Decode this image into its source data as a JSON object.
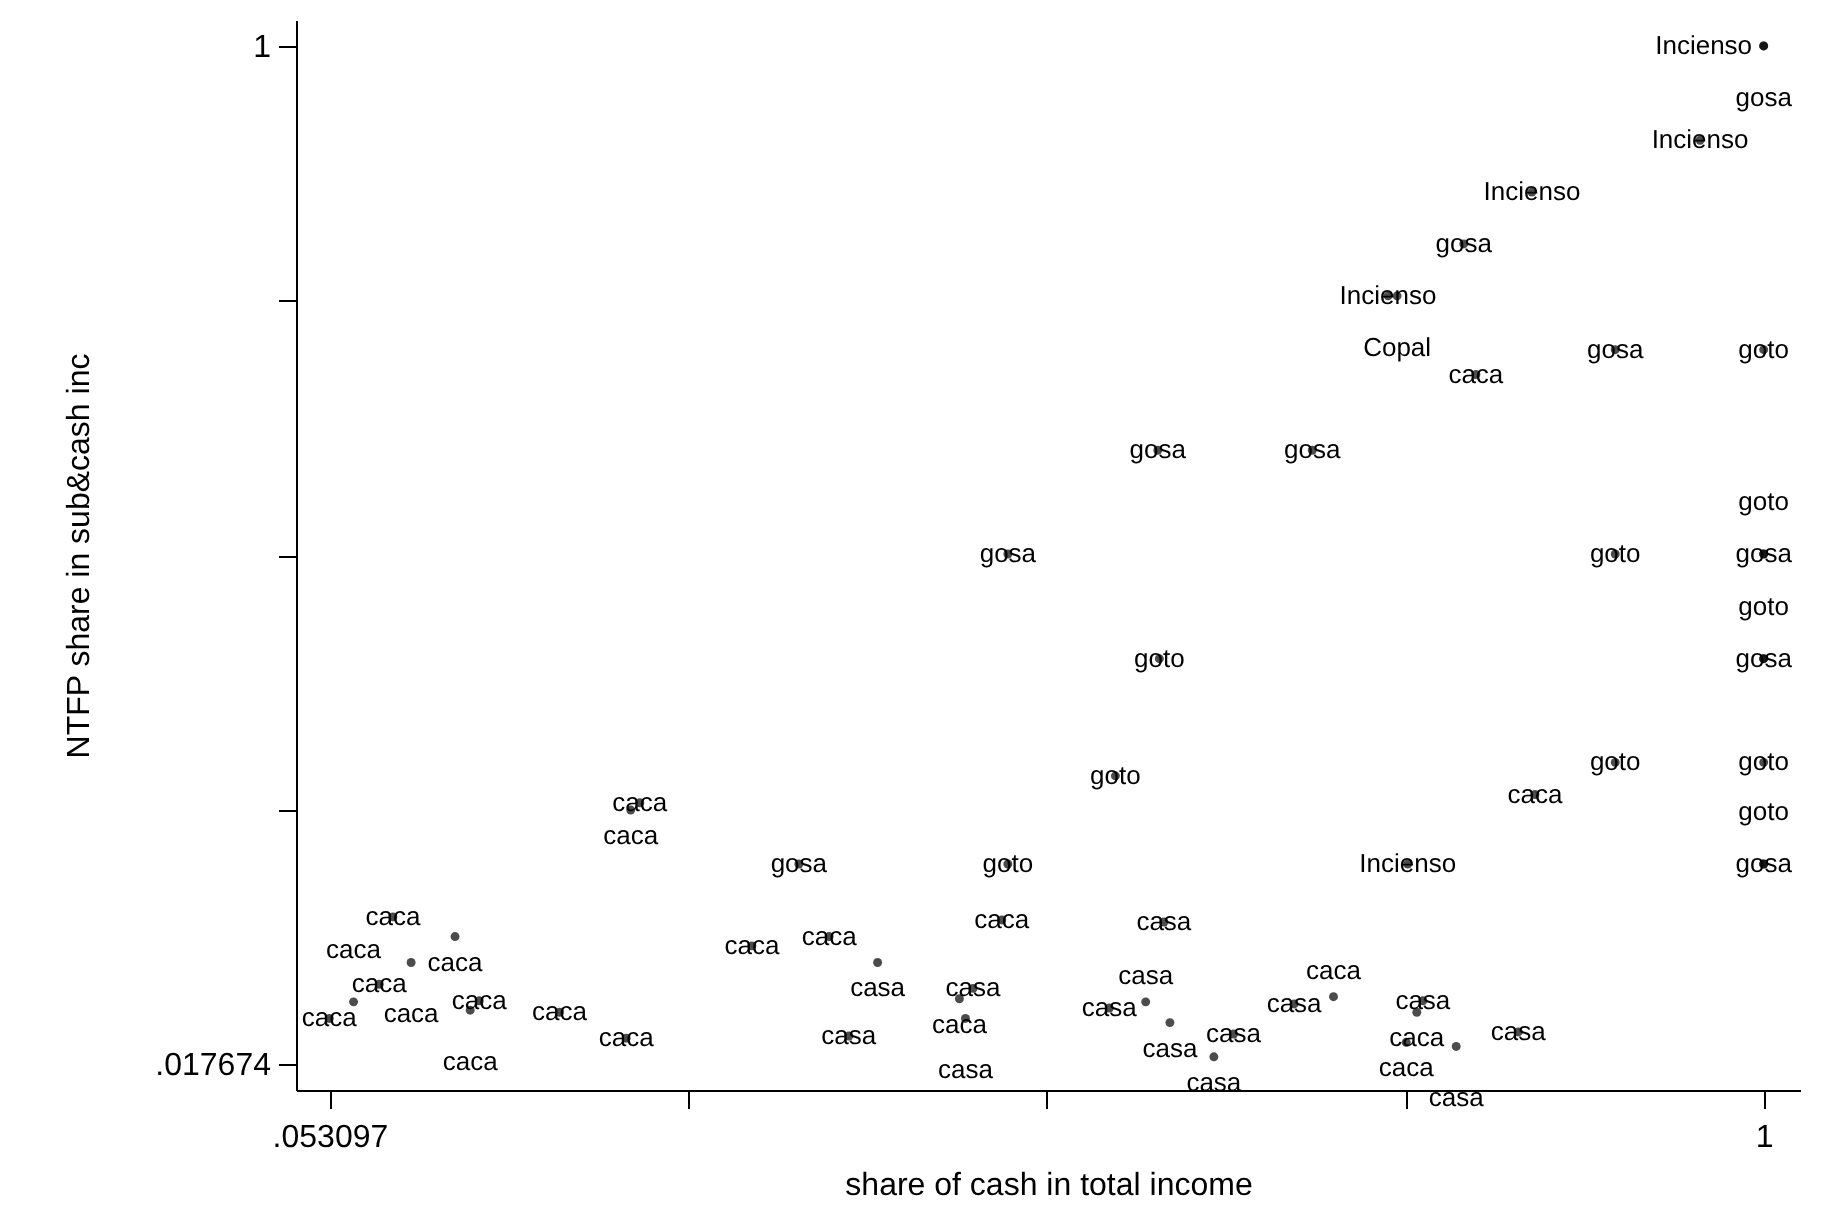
{
  "chart_data": {
    "type": "scatter",
    "xlabel": "share of cash in total income",
    "ylabel": "NTFP share in sub&cash inc",
    "grid": false,
    "xlim": [
      0.031,
      1.024
    ],
    "ylim": [
      -0.007,
      1.025
    ],
    "xticks": [
      {
        "value": 0.053097,
        "label": ".053097"
      },
      {
        "value": 0.289823,
        "label": null
      },
      {
        "value": 0.526549,
        "label": null
      },
      {
        "value": 0.763274,
        "label": null
      },
      1
    ],
    "yticks": [
      {
        "value": 0.017674,
        "label": ".017674"
      },
      {
        "value": 0.263256,
        "label": null
      },
      {
        "value": 0.508837,
        "label": null
      },
      {
        "value": 0.754419,
        "label": null
      },
      1
    ],
    "series": [
      {
        "color": "#000000",
        "x": [
          1,
          1,
          0.958,
          0.847,
          0.802,
          0.752,
          0.758,
          0.902,
          1,
          0.81,
          0.6,
          0.702,
          0.501,
          0.902,
          1,
          1,
          0.601,
          1,
          1,
          0.572,
          0.902,
          1,
          0.849,
          0.258,
          0.252,
          0.363,
          0.501,
          0.765,
          1,
          1,
          0.497,
          0.604,
          0.095,
          0.136,
          0.107,
          0.086,
          0.069,
          0.053,
          0.152,
          0.146,
          0.205,
          0.249,
          0.332,
          0.383,
          0.415,
          0.396,
          0.478,
          0.469,
          0.473,
          0.568,
          0.592,
          0.608,
          0.65,
          0.637,
          0.69,
          0.716,
          0.775,
          0.771,
          0.764,
          0.797,
          0.838
        ],
        "values": [
          1,
          1,
          0.909,
          0.859,
          0.809,
          0.759,
          0.759,
          0.707,
          0.707,
          0.683,
          0.61,
          0.61,
          0.51,
          0.51,
          0.51,
          0.51,
          0.409,
          0.409,
          0.409,
          0.296,
          0.309,
          0.309,
          0.278,
          0.27,
          0.263,
          0.211,
          0.211,
          0.211,
          0.211,
          0.211,
          0.157,
          0.155,
          0.16,
          0.141,
          0.116,
          0.095,
          0.078,
          0.062,
          0.079,
          0.07,
          0.068,
          0.043,
          0.132,
          0.141,
          0.116,
          0.045,
          0.091,
          0.081,
          0.062,
          0.072,
          0.078,
          0.058,
          0.047,
          0.025,
          0.076,
          0.083,
          0.079,
          0.068,
          0.039,
          0.035,
          0.049
        ],
        "value_labels": [
          "Incienso",
          "gosa",
          "Incienso",
          "Incienso",
          "gosa",
          "Incienso",
          "Copal",
          "gosa",
          "goto",
          "caca",
          "gosa",
          "gosa",
          "gosa",
          "goto",
          "gosa",
          "goto",
          "goto",
          "gosa",
          "goto",
          "goto",
          "goto",
          "goto",
          "caca",
          "caca",
          "caca",
          "gosa",
          "goto",
          "Incienso",
          "gosa",
          "goto",
          "caca",
          "casa",
          "caca",
          "caca",
          "caca",
          "caca",
          "caca",
          "caca",
          "caca",
          "caca",
          "caca",
          "caca",
          "caca",
          "caca",
          "casa",
          "casa",
          "casa",
          "caca",
          "casa",
          "casa",
          "casa",
          "casa",
          "casa",
          "casa",
          "casa",
          "caca",
          "casa",
          "caca",
          "caca",
          "casa",
          "casa"
        ]
      }
    ]
  }
}
